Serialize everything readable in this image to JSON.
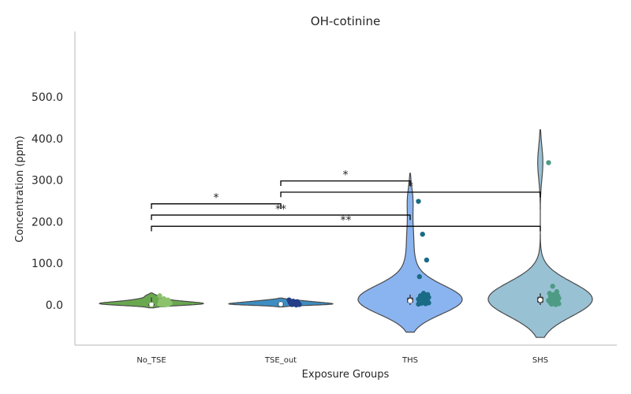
{
  "chart_data": {
    "type": "violin",
    "title": "OH-cotinine",
    "xlabel": "Exposure Groups",
    "ylabel": "Concentration (ppm)",
    "ylim": [
      -97,
      657
    ],
    "yticks": [
      "0.0",
      "100.0",
      "200.0",
      "300.0",
      "400.0",
      "500.0"
    ],
    "ytick_values": [
      0,
      100,
      200,
      300,
      400,
      500
    ],
    "grid": false,
    "categories": [
      "No_TSE",
      "TSE_out",
      "THS",
      "SHS"
    ],
    "groups": [
      {
        "name": "No_TSE",
        "violin_color": "#6aa84f",
        "point_color": "#8cc26b",
        "box": {
          "q1": 0,
          "median": 1,
          "q3": 3,
          "whisker_low": 0,
          "whisker_high": 18
        },
        "points": [
          22,
          15,
          12,
          10,
          8,
          7,
          6,
          5,
          4,
          3,
          3,
          2,
          2,
          1,
          1,
          0
        ]
      },
      {
        "name": "TSE_out",
        "violin_color": "#3d8ec2",
        "point_color": "#253f86",
        "box": {
          "q1": 1,
          "median": 2,
          "q3": 5,
          "whisker_low": 0,
          "whisker_high": 9
        },
        "points": [
          12,
          9,
          8,
          6,
          5,
          4,
          3,
          2,
          1,
          1,
          0
        ]
      },
      {
        "name": "THS",
        "violin_color": "#8ab4f0",
        "point_color": "#1a6b85",
        "box": {
          "q1": 5,
          "median": 10,
          "q3": 18,
          "whisker_low": 0,
          "whisker_high": 25
        },
        "points": [
          249,
          170,
          108,
          68,
          28,
          25,
          22,
          20,
          18,
          16,
          15,
          14,
          12,
          11,
          10,
          9,
          8,
          7,
          6,
          5,
          4,
          3,
          2
        ]
      },
      {
        "name": "SHS",
        "violin_color": "#99c1d4",
        "point_color": "#4e9b85",
        "box": {
          "q1": 5,
          "median": 12,
          "q3": 20,
          "whisker_low": 0,
          "whisker_high": 28
        },
        "points": [
          342,
          45,
          32,
          28,
          25,
          22,
          20,
          18,
          16,
          14,
          12,
          11,
          10,
          9,
          8,
          7,
          6,
          5,
          4,
          3,
          2,
          1
        ]
      }
    ],
    "significance": [
      {
        "from": "TSE_out",
        "to": "THS",
        "label": "*"
      },
      {
        "from": "TSE_out",
        "to": "SHS",
        "label": "*"
      },
      {
        "from": "No_TSE",
        "to": "TSE_out",
        "label": "*"
      },
      {
        "from": "No_TSE",
        "to": "THS",
        "label": "**"
      },
      {
        "from": "No_TSE",
        "to": "SHS",
        "label": "**"
      }
    ]
  }
}
